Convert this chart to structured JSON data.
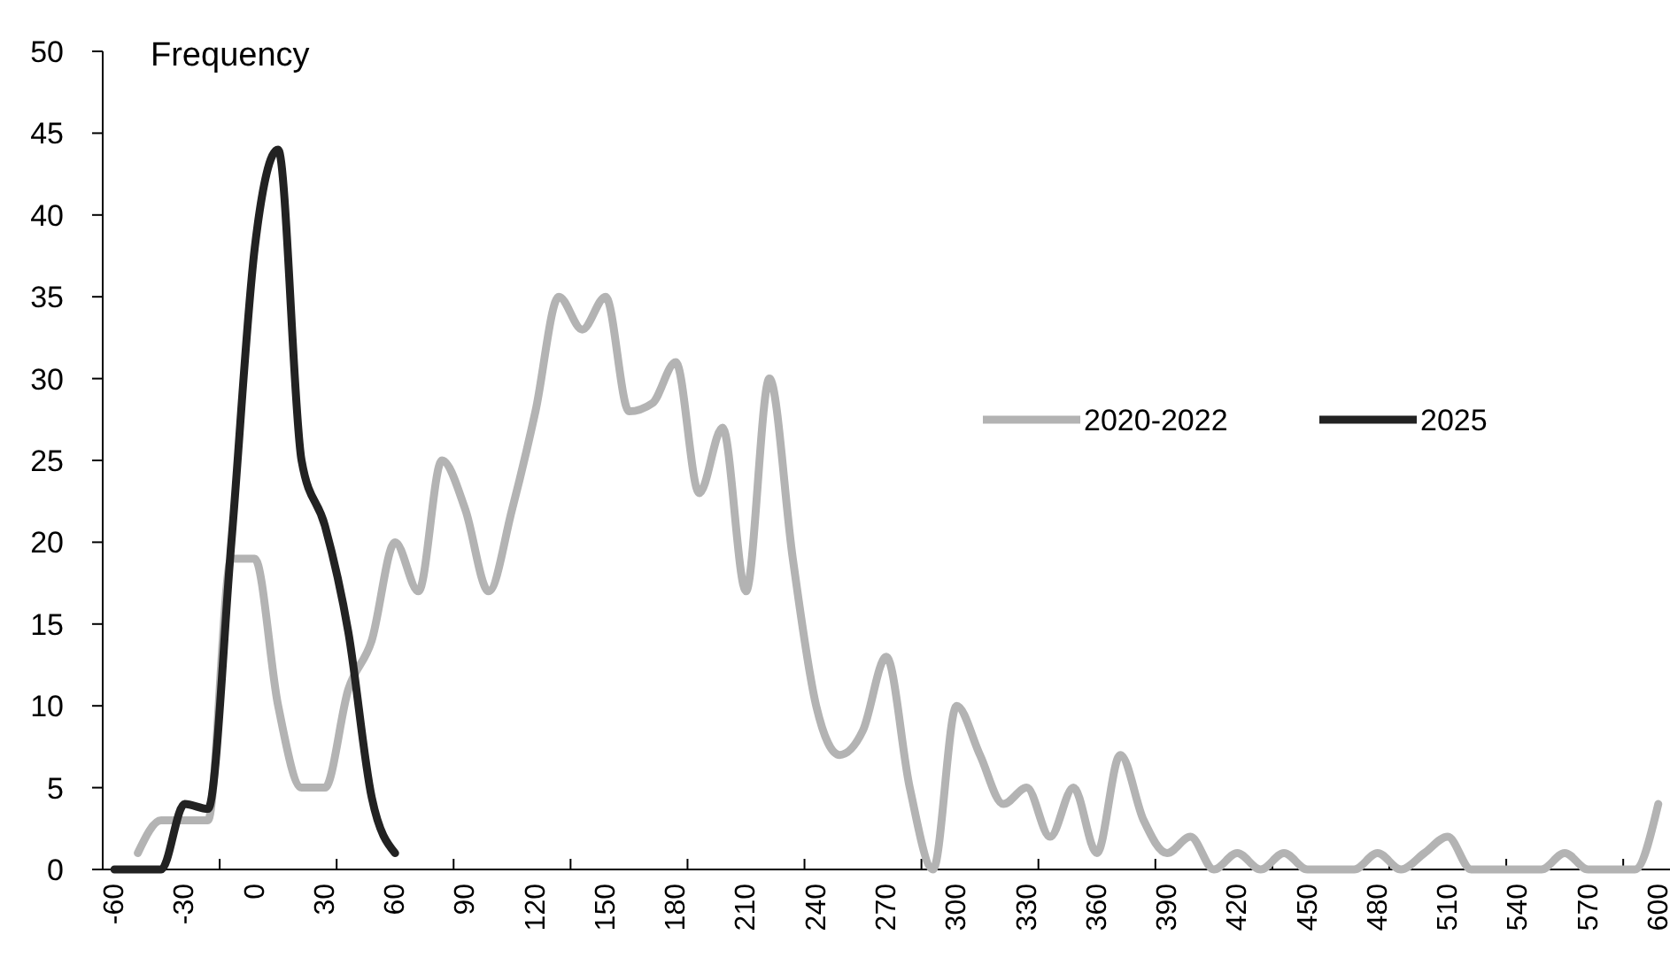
{
  "chart_data": {
    "type": "line",
    "ylabel": "Frequency",
    "categories": [
      "-60",
      null,
      null,
      "-30",
      null,
      null,
      "0",
      null,
      null,
      "30",
      null,
      null,
      "60",
      null,
      null,
      "90",
      null,
      null,
      "120",
      null,
      null,
      "150",
      null,
      null,
      "180",
      null,
      null,
      "210",
      null,
      null,
      "240",
      null,
      null,
      "270",
      null,
      null,
      "300",
      null,
      null,
      "330",
      null,
      null,
      "360",
      null,
      null,
      "390",
      null,
      null,
      "420",
      null,
      null,
      "450",
      null,
      null,
      "480",
      null,
      null,
      "510",
      null,
      null,
      "540",
      null,
      null,
      "570",
      null,
      null,
      "600"
    ],
    "series": [
      {
        "name": "2020-2022",
        "color": "#b3b3b3",
        "values": [
          null,
          1,
          3,
          3,
          3,
          19,
          19,
          10,
          5,
          5,
          11,
          14,
          20,
          17,
          25,
          22,
          17,
          22,
          28,
          35,
          33,
          35,
          28,
          28.5,
          31,
          23,
          27,
          17,
          30,
          19,
          10,
          7,
          8.5,
          13,
          5,
          0,
          10,
          7,
          4,
          5,
          2,
          5,
          1,
          7,
          3,
          1,
          2,
          0,
          1,
          0,
          1,
          0,
          0,
          0,
          1,
          0,
          1,
          2,
          0,
          0,
          0,
          0,
          1,
          0,
          0,
          0,
          4
        ]
      },
      {
        "name": "2025",
        "color": "#222222",
        "values": [
          0,
          0,
          0,
          4,
          3.7,
          20,
          38,
          44,
          25,
          21,
          14.5,
          4.4,
          1,
          null,
          null,
          null,
          null,
          null,
          null,
          null,
          null,
          null,
          null,
          null,
          null,
          null,
          null,
          null,
          null,
          null,
          null,
          null,
          null,
          null,
          null,
          null,
          null,
          null,
          null,
          null,
          null,
          null,
          null,
          null,
          null,
          null,
          null,
          null,
          null,
          null,
          null,
          null,
          null,
          null,
          null,
          null,
          null,
          null,
          null,
          null,
          null,
          null,
          null,
          null,
          null,
          null,
          null
        ]
      }
    ],
    "ylim": [
      0,
      50
    ],
    "yticks": [
      0,
      5,
      10,
      15,
      20,
      25,
      30,
      35,
      40,
      45,
      50
    ],
    "grid": false,
    "legend": "right",
    "marker": "none",
    "line_style": "solid"
  }
}
